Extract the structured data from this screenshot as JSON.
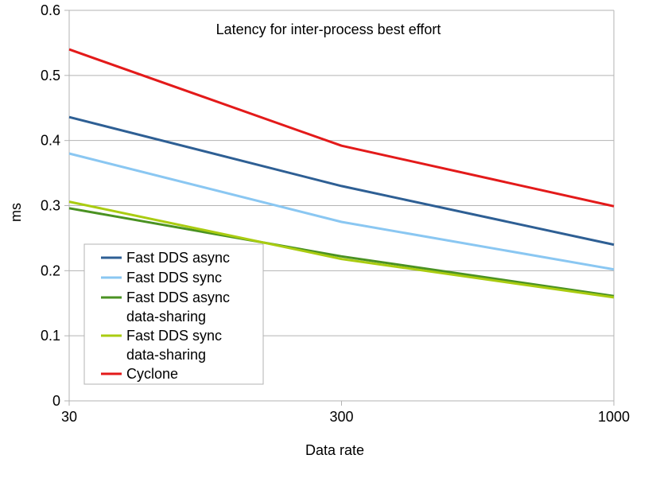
{
  "chart_data": {
    "type": "line",
    "title": "Latency for inter-process best effort",
    "xlabel": "Data rate",
    "ylabel": "ms",
    "categories": [
      "30",
      "300",
      "1000"
    ],
    "ylim": [
      0,
      0.6
    ],
    "yticks": [
      "0",
      "0.1",
      "0.2",
      "0.3",
      "0.4",
      "0.5",
      "0.6"
    ],
    "grid": true,
    "legend_position": "bottom-left",
    "series": [
      {
        "name": "Fast DDS async",
        "color": "#2e5f94",
        "values": [
          0.436,
          0.33,
          0.24
        ]
      },
      {
        "name": "Fast DDS sync",
        "color": "#8ac7f2",
        "values": [
          0.38,
          0.275,
          0.202
        ]
      },
      {
        "name": "Fast DDS async data-sharing",
        "color": "#4a9222",
        "values": [
          0.296,
          0.222,
          0.161
        ]
      },
      {
        "name": "Fast DDS sync data-sharing",
        "color": "#aacc11",
        "values": [
          0.306,
          0.218,
          0.159
        ]
      },
      {
        "name": "Cyclone",
        "color": "#e31a1a",
        "values": [
          0.54,
          0.392,
          0.299
        ]
      }
    ]
  }
}
